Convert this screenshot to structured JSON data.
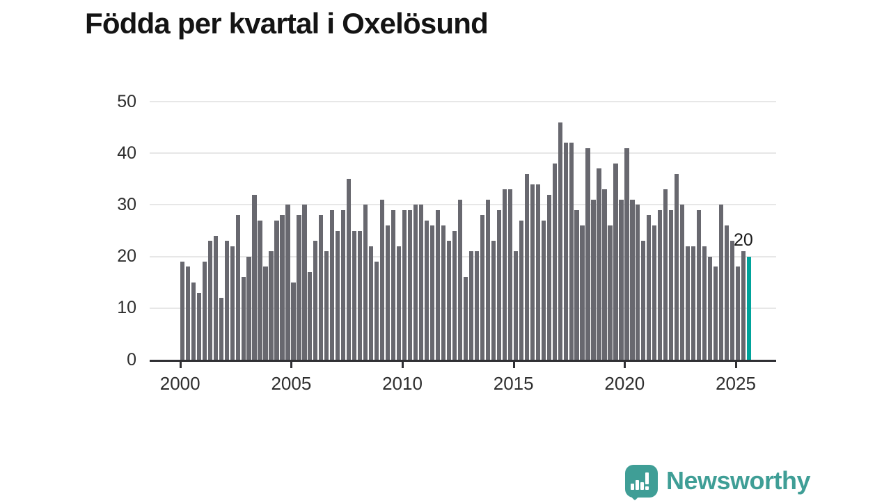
{
  "title": "Födda per kvartal i Oxelösund",
  "logo": {
    "brand": "Newsworthy"
  },
  "colors": {
    "bar": "#68686f",
    "highlight": "#00a39b",
    "grid": "#e7e7e7",
    "axis": "#2f2f33",
    "title": "#141414",
    "tick_label": "#2e2e2e",
    "logo": "#3f9e96",
    "background": "#ffffff"
  },
  "chart_data": {
    "type": "bar",
    "title": "Födda per kvartal i Oxelösund",
    "xlabel": "",
    "ylabel": "",
    "ylim": [
      0,
      50
    ],
    "y_ticks": [
      "0",
      "10",
      "20",
      "30",
      "40",
      "50"
    ],
    "x_ticks": [
      "2000",
      "2005",
      "2010",
      "2015",
      "2020",
      "2025"
    ],
    "grid": "horizontal",
    "legend": "none",
    "categories": [
      "2000 Q1",
      "2000 Q2",
      "2000 Q3",
      "2000 Q4",
      "2001 Q1",
      "2001 Q2",
      "2001 Q3",
      "2001 Q4",
      "2002 Q1",
      "2002 Q2",
      "2002 Q3",
      "2002 Q4",
      "2003 Q1",
      "2003 Q2",
      "2003 Q3",
      "2003 Q4",
      "2004 Q1",
      "2004 Q2",
      "2004 Q3",
      "2004 Q4",
      "2005 Q1",
      "2005 Q2",
      "2005 Q3",
      "2005 Q4",
      "2006 Q1",
      "2006 Q2",
      "2006 Q3",
      "2006 Q4",
      "2007 Q1",
      "2007 Q2",
      "2007 Q3",
      "2007 Q4",
      "2008 Q1",
      "2008 Q2",
      "2008 Q3",
      "2008 Q4",
      "2009 Q1",
      "2009 Q2",
      "2009 Q3",
      "2009 Q4",
      "2010 Q1",
      "2010 Q2",
      "2010 Q3",
      "2010 Q4",
      "2011 Q1",
      "2011 Q2",
      "2011 Q3",
      "2011 Q4",
      "2012 Q1",
      "2012 Q2",
      "2012 Q3",
      "2012 Q4",
      "2013 Q1",
      "2013 Q2",
      "2013 Q3",
      "2013 Q4",
      "2014 Q1",
      "2014 Q2",
      "2014 Q3",
      "2014 Q4",
      "2015 Q1",
      "2015 Q2",
      "2015 Q3",
      "2015 Q4",
      "2016 Q1",
      "2016 Q2",
      "2016 Q3",
      "2016 Q4",
      "2017 Q1",
      "2017 Q2",
      "2017 Q3",
      "2017 Q4",
      "2018 Q1",
      "2018 Q2",
      "2018 Q3",
      "2018 Q4",
      "2019 Q1",
      "2019 Q2",
      "2019 Q3",
      "2019 Q4",
      "2020 Q1",
      "2020 Q2",
      "2020 Q3",
      "2020 Q4",
      "2021 Q1",
      "2021 Q2",
      "2021 Q3",
      "2021 Q4",
      "2022 Q1",
      "2022 Q2",
      "2022 Q3",
      "2022 Q4",
      "2023 Q1",
      "2023 Q2",
      "2023 Q3",
      "2023 Q4",
      "2024 Q1",
      "2024 Q2",
      "2024 Q3",
      "2024 Q4",
      "2025 Q1",
      "2025 Q2",
      "2025 Q3"
    ],
    "values": [
      19,
      18,
      15,
      13,
      19,
      23,
      24,
      12,
      23,
      22,
      28,
      16,
      20,
      32,
      27,
      18,
      21,
      27,
      28,
      30,
      15,
      28,
      30,
      17,
      23,
      28,
      21,
      29,
      25,
      29,
      35,
      25,
      25,
      30,
      22,
      19,
      31,
      26,
      29,
      22,
      29,
      29,
      30,
      30,
      27,
      26,
      29,
      26,
      23,
      25,
      31,
      16,
      21,
      21,
      28,
      31,
      23,
      29,
      33,
      33,
      21,
      27,
      36,
      34,
      34,
      27,
      32,
      38,
      46,
      42,
      42,
      29,
      26,
      41,
      31,
      37,
      33,
      26,
      38,
      31,
      41,
      31,
      30,
      23,
      28,
      26,
      29,
      33,
      29,
      36,
      30,
      22,
      22,
      29,
      22,
      20,
      18,
      30,
      26,
      23,
      18,
      21,
      20
    ],
    "highlight_index": 102,
    "annotation": {
      "text": "20",
      "target": "2025 Q3"
    }
  }
}
